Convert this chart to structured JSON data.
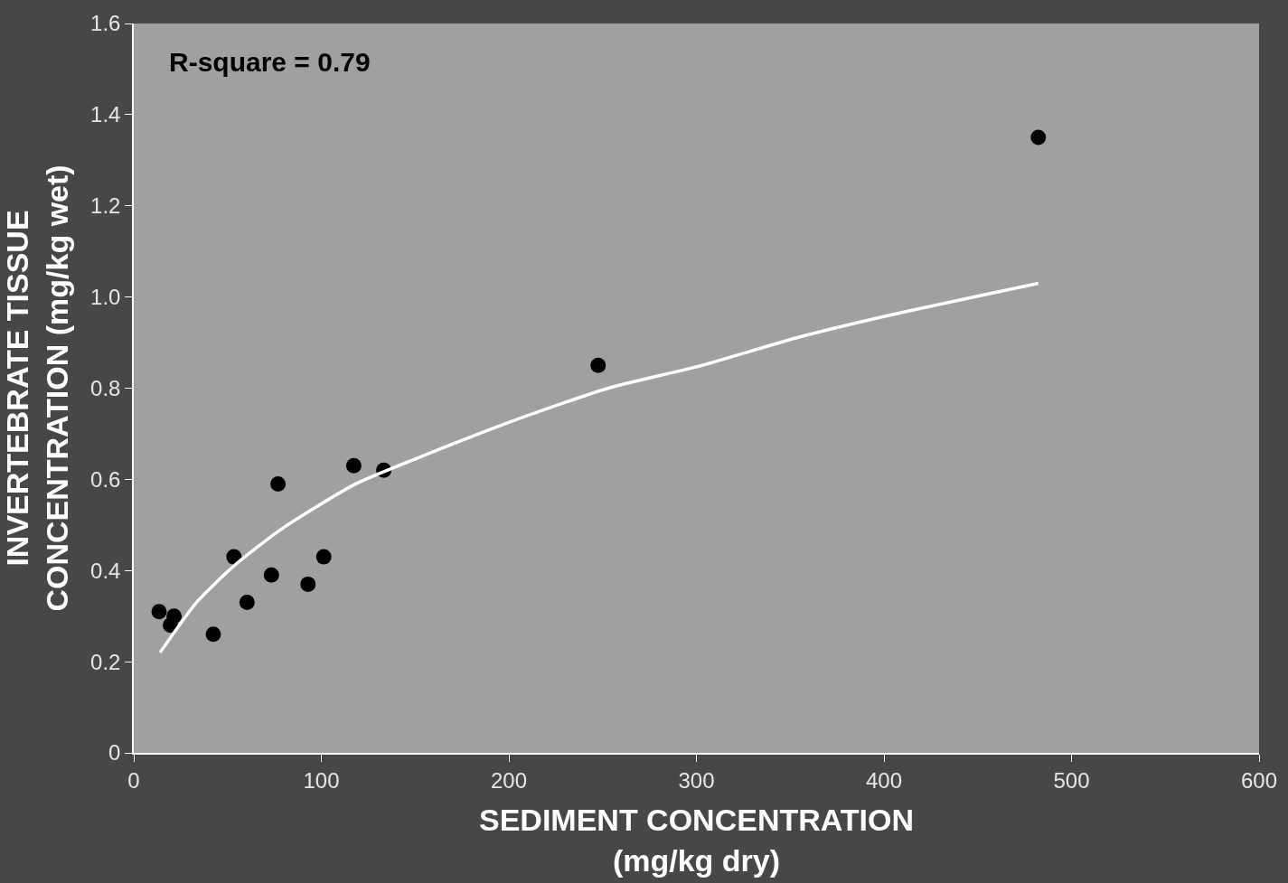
{
  "chart_data": {
    "type": "scatter",
    "xlabel": "SEDIMENT CONCENTRATION\n(mg/kg dry)",
    "ylabel": "INVERTEBRATE TISSUE\nCONCENTRATION (mg/kg wet)",
    "annotations": [
      "R-square = 0.79"
    ],
    "xlim": [
      0,
      600
    ],
    "xticks": [
      0,
      100,
      200,
      300,
      400,
      500,
      600
    ],
    "ylim": [
      0,
      1.6
    ],
    "yticks": [
      0,
      0.2,
      0.4,
      0.6,
      0.8,
      {
        "value": 1,
        "label": "1.0"
      },
      1.2,
      1.4,
      1.6
    ],
    "grid": false,
    "series": [
      {
        "marker": "circle",
        "color": "#000000",
        "x": [
          13.5,
          21.5,
          19.5,
          42.4,
          53.4,
          60.4,
          73.4,
          76.9,
          92.9,
          101.3,
          117.3,
          133.3,
          247.6,
          482.3
        ],
        "values": [
          0.31,
          0.3,
          0.28,
          0.26,
          0.43,
          0.33,
          0.39,
          0.59,
          0.37,
          0.43,
          0.63,
          0.62,
          0.85,
          1.35
        ]
      },
      {
        "type": "line",
        "marker": "none",
        "color": "#ffffff",
        "line_style": "solid",
        "x": [
          14,
          33.4,
          53.4,
          78.4,
          118.3,
          153.3,
          203.2,
          253.1,
          303,
          353,
          403,
          482.3
        ],
        "values": [
          0.22,
          0.33,
          0.41,
          0.49,
          0.59,
          0.65,
          0.73,
          0.8,
          0.85,
          0.91,
          0.96,
          1.03
        ]
      }
    ]
  }
}
